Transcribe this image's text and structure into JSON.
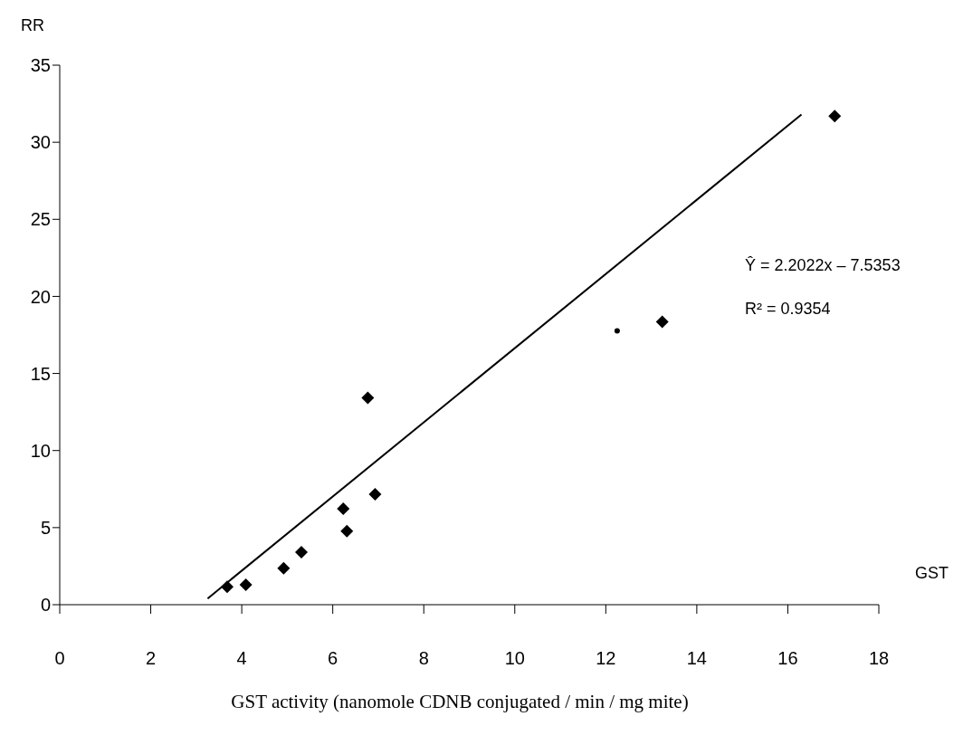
{
  "chart_data": {
    "type": "scatter",
    "xlabel": "GST activity (nanomole CDNB conjugated / min / mg mite)",
    "ylabel": "RR",
    "xlim": [
      0,
      18
    ],
    "xticks": [
      0,
      2,
      4,
      6,
      8,
      10,
      12,
      14,
      16,
      18
    ],
    "ylim": [
      0,
      35
    ],
    "yticks": [
      0,
      5,
      10,
      15,
      20,
      25,
      30,
      35
    ],
    "grid": false,
    "marker": "diamond",
    "series": [
      {
        "color": "#000000",
        "x": [
          3.68,
          4.09,
          4.92,
          5.31,
          6.23,
          6.31,
          6.77,
          6.93,
          13.24,
          17.03
        ],
        "values": [
          1.16,
          1.29,
          2.37,
          3.4,
          6.22,
          4.77,
          13.42,
          7.16,
          18.35,
          31.7
        ]
      },
      {
        "color": "#000000",
        "marker": "circle",
        "x": [
          12.25
        ],
        "values": [
          17.76
        ]
      },
      {
        "type": "line",
        "color": "#000000",
        "marker": "none",
        "line_style": "solid",
        "x": [
          3.25,
          16.3
        ],
        "values": [
          0.4,
          31.8
        ]
      }
    ],
    "annotations": [
      "Ŷ = 2.2022x – 7.5353",
      "R² = 0.9354",
      "GST"
    ]
  }
}
